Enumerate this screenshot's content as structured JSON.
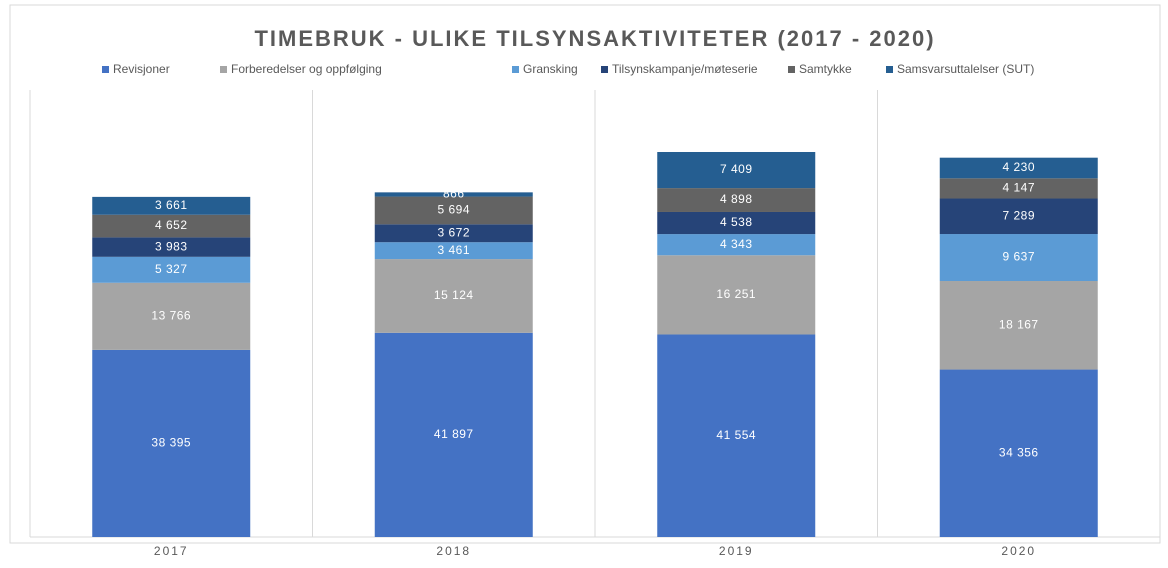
{
  "chart_data": {
    "type": "stacked_bar",
    "title": "TIMEBRUK - ULIKE TILSYNSAKTIVITETER (2017 - 2020)",
    "categories": [
      "2017",
      "2018",
      "2019",
      "2020"
    ],
    "series": [
      {
        "name": "Revisjoner",
        "color": "#4472c4",
        "values": [
          38395,
          41897,
          41554,
          34356
        ],
        "value_labels": [
          "38 395",
          "41 897",
          "41 554",
          "34 356"
        ]
      },
      {
        "name": "Forberedelser og oppfølging",
        "color": "#a5a5a5",
        "values": [
          13766,
          15124,
          16251,
          18167
        ],
        "value_labels": [
          "13 766",
          "15 124",
          "16 251",
          "18 167"
        ]
      },
      {
        "name": "Gransking",
        "color": "#5b9bd5",
        "values": [
          5327,
          3461,
          4343,
          9637
        ],
        "value_labels": [
          "5 327",
          "3 461",
          "4 343",
          "9 637"
        ]
      },
      {
        "name": "Tilsynskampanje/møteserie",
        "color": "#264478",
        "values": [
          3983,
          3672,
          4538,
          7289
        ],
        "value_labels": [
          "3 983",
          "3 672",
          "4 538",
          "7 289"
        ]
      },
      {
        "name": "Samtykke",
        "color": "#636363",
        "values": [
          4652,
          5694,
          4898,
          4147
        ],
        "value_labels": [
          "4 652",
          "5 694",
          "4 898",
          "4 147"
        ]
      },
      {
        "name": "Samsvarsuttalelser (SUT)",
        "color": "#255e91",
        "values": [
          3661,
          866,
          7409,
          4230
        ],
        "value_labels": [
          "3 661",
          "866",
          "7 409",
          "4 230"
        ]
      }
    ],
    "legend": "top"
  }
}
